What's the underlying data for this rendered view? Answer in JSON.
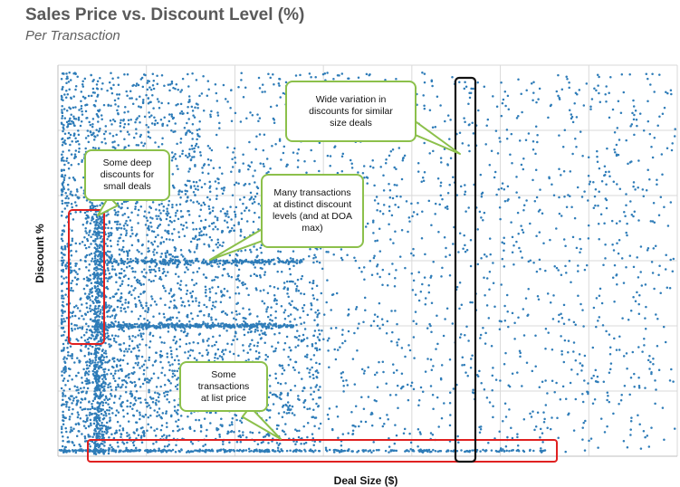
{
  "chart_data": {
    "type": "scatter",
    "title": "Sales Price vs. Discount Level (%)",
    "subtitle": "Per Transaction",
    "xlabel": "Deal Size ($)",
    "ylabel": "Discount  %",
    "grid": true,
    "legend": "none",
    "colors": {
      "points": "#2e7cb8",
      "callout_fill": "#ffffff",
      "callout_border": "#8cc04b",
      "highlight_red": "#e02020",
      "highlight_black": "#111111",
      "grid": "#d9d9d9"
    },
    "annotations": [
      {
        "id": "deep",
        "text": "Some deep\ndiscounts for\nsmall deals"
      },
      {
        "id": "many",
        "text": "Many transactions\nat distinct discount\nlevels (and at DOA\nmax)"
      },
      {
        "id": "wide",
        "text": "Wide variation in\ndiscounts for similar\nsize deals"
      },
      {
        "id": "list",
        "text": "Some\ntransactions\nat list price"
      }
    ],
    "highlights": [
      {
        "id": "small-deals-box",
        "color": "red"
      },
      {
        "id": "list-price-box",
        "color": "red"
      },
      {
        "id": "similar-size-box",
        "color": "black"
      }
    ]
  }
}
